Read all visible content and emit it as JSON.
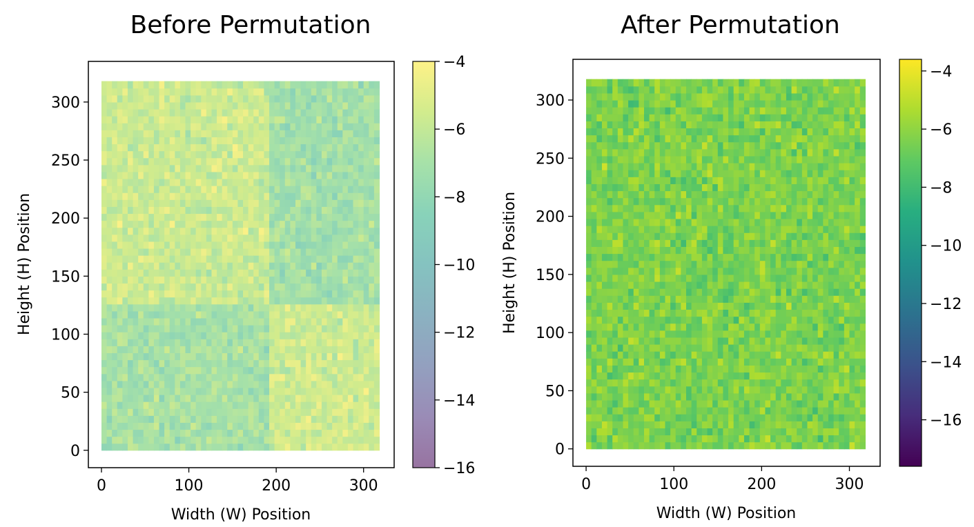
{
  "chart_data": [
    {
      "type": "scatter",
      "title": "Before Permutation",
      "xlabel": "Width (W) Position",
      "ylabel": "Height (H) Position",
      "xlim": [
        -15,
        335
      ],
      "ylim": [
        -15,
        335
      ],
      "xticks": [
        0,
        100,
        200,
        300
      ],
      "yticks": [
        0,
        50,
        100,
        150,
        200,
        250,
        300
      ],
      "grid": false,
      "point_alpha": 0.55,
      "colorbar": {
        "colormap": "viridis",
        "range": [
          -16,
          -4
        ],
        "ticks": [
          -4,
          -6,
          -8,
          -10,
          -12,
          -14,
          -16
        ],
        "alpha": 0.55
      },
      "grid_extent": {
        "x": [
          0,
          320
        ],
        "y": [
          0,
          320
        ]
      },
      "regions": [
        {
          "x": [
            0,
            190
          ],
          "y": [
            125,
            320
          ],
          "mean_value": -5.7
        },
        {
          "x": [
            190,
            320
          ],
          "y": [
            125,
            320
          ],
          "mean_value": -7.2
        },
        {
          "x": [
            0,
            190
          ],
          "y": [
            0,
            125
          ],
          "mean_value": -7.0
        },
        {
          "x": [
            190,
            320
          ],
          "y": [
            0,
            125
          ],
          "mean_value": -5.6
        }
      ]
    },
    {
      "type": "scatter",
      "title": "After Permutation",
      "xlabel": "Width (W) Position",
      "ylabel": "Height (H) Position",
      "xlim": [
        -15,
        335
      ],
      "ylim": [
        -15,
        335
      ],
      "xticks": [
        0,
        100,
        200,
        300
      ],
      "yticks": [
        0,
        50,
        100,
        150,
        200,
        250,
        300
      ],
      "grid": false,
      "point_alpha": 1.0,
      "colorbar": {
        "colormap": "viridis",
        "range": [
          -17.6,
          -3.6
        ],
        "ticks": [
          -4,
          -6,
          -8,
          -10,
          -12,
          -14,
          -16
        ],
        "alpha": 1.0
      },
      "grid_extent": {
        "x": [
          0,
          320
        ],
        "y": [
          0,
          320
        ]
      },
      "regions": [
        {
          "x": [
            0,
            320
          ],
          "y": [
            0,
            320
          ],
          "mean_value": -6.4
        }
      ]
    }
  ]
}
